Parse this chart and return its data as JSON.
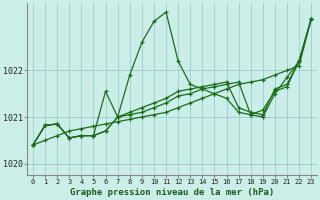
{
  "title": "Graphe pression niveau de la mer (hPa)",
  "bg_color": "#cceee8",
  "grid_color": "#99cccc",
  "line_color": "#1a6e1a",
  "xlim_min": -0.5,
  "xlim_max": 23.5,
  "ylim_min": 1019.75,
  "ylim_max": 1023.45,
  "yticks": [
    1020,
    1021,
    1022
  ],
  "xticks": [
    0,
    1,
    2,
    3,
    4,
    5,
    6,
    7,
    8,
    9,
    10,
    11,
    12,
    13,
    14,
    15,
    16,
    17,
    18,
    19,
    20,
    21,
    22,
    23
  ],
  "series": [
    [
      1020.4,
      1020.5,
      1020.6,
      1020.7,
      1020.75,
      1020.8,
      1020.85,
      1020.9,
      1020.95,
      1021.0,
      1021.05,
      1021.1,
      1021.2,
      1021.3,
      1021.4,
      1021.5,
      1021.6,
      1021.7,
      1021.75,
      1021.8,
      1021.9,
      1022.0,
      1022.1,
      1023.1
    ],
    [
      1020.4,
      1020.82,
      1020.85,
      1020.55,
      1020.6,
      1020.6,
      1021.55,
      1021.0,
      1021.9,
      1022.6,
      1023.05,
      1023.25,
      1022.2,
      1021.7,
      1021.6,
      1021.5,
      1021.4,
      1021.1,
      1021.05,
      1021.0,
      1021.5,
      1021.85,
      1022.2,
      1023.1
    ],
    [
      1020.4,
      1020.82,
      1020.85,
      1020.55,
      1020.6,
      1020.6,
      1020.7,
      1021.0,
      1021.1,
      1021.2,
      1021.3,
      1021.4,
      1021.55,
      1021.6,
      1021.65,
      1021.7,
      1021.75,
      1021.2,
      1021.1,
      1021.05,
      1021.6,
      1021.7,
      1022.2,
      1023.1
    ],
    [
      1020.4,
      1020.82,
      1020.85,
      1020.55,
      1020.6,
      1020.6,
      1020.7,
      1021.0,
      1021.05,
      1021.1,
      1021.2,
      1021.3,
      1021.45,
      1021.5,
      1021.6,
      1021.65,
      1021.7,
      1021.75,
      1021.05,
      1021.15,
      1021.55,
      1021.65,
      1022.2,
      1023.1
    ]
  ]
}
